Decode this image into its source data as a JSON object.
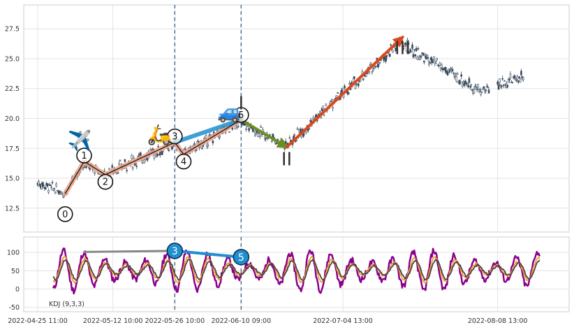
{
  "chart_data": [
    {
      "type": "candlestick",
      "panel": "price",
      "yticks": [
        "12.5",
        "15.0",
        "17.5",
        "20.0",
        "22.5",
        "25.0",
        "27.5"
      ],
      "ylim": [
        10.5,
        29.5
      ],
      "xlim_days": [
        0,
        117
      ],
      "grid": true,
      "vlines_days": [
        31,
        46
      ],
      "segments": [
        {
          "from": 0,
          "to": 1,
          "color": "#f2a98e",
          "width": 7
        },
        {
          "from": 1,
          "to": 2,
          "color": "#f2a98e",
          "width": 7
        },
        {
          "from": 2,
          "to": 3,
          "color": "#f2a98e",
          "width": 7
        },
        {
          "from": 3,
          "to": 4,
          "color": "#f2a98e",
          "width": 7
        },
        {
          "from": 4,
          "to": 5,
          "color": "#f2a98e",
          "width": 7
        },
        {
          "from": 3,
          "to": 5,
          "color": "#1f8fd0",
          "width": 6
        },
        {
          "from": 5,
          "to": 6,
          "color": "#6b8e23",
          "width": 4,
          "arrow": true
        },
        {
          "from": 6,
          "to": 7,
          "color": "#d94a1e",
          "width": 4,
          "arrow": true
        }
      ],
      "black_path": [
        0,
        1,
        2,
        3,
        4,
        5
      ],
      "pivots": [
        {
          "label": "0",
          "day": 6.2,
          "price": 13.7,
          "lx": 6.2,
          "ly": 12.0
        },
        {
          "label": "1",
          "day": 10.5,
          "price": 16.4,
          "lx": 10.5,
          "ly": 16.9
        },
        {
          "label": "2",
          "day": 15.3,
          "price": 15.3,
          "lx": 15.3,
          "ly": 14.7
        },
        {
          "label": "3",
          "day": 31.0,
          "price": 18.0,
          "lx": 31.0,
          "ly": 18.5
        },
        {
          "label": "4",
          "day": 33.0,
          "price": 17.0,
          "lx": 33.0,
          "ly": 16.4
        },
        {
          "label": "5",
          "day": 46.0,
          "price": 19.9,
          "lx": 46.0,
          "ly": 20.3
        },
        {
          "label": "II",
          "day": 56.3,
          "price": 17.6,
          "lx": 56.3,
          "ly": 16.6
        },
        {
          "label": "III",
          "day": 82.5,
          "price": 26.8,
          "lx": 82.5,
          "ly": 25.9
        }
      ],
      "roman_labels": [
        {
          "text": "I",
          "day": 46.0,
          "price": 21.3
        },
        {
          "text": "II",
          "day": 56.3,
          "price": 16.6
        },
        {
          "text": "III",
          "day": 82.5,
          "price": 25.9
        }
      ],
      "emojis": [
        {
          "name": "airplane-icon",
          "char": "✈️",
          "day": 9.5,
          "price": 17.6
        },
        {
          "name": "scooter-icon",
          "char": "🛵",
          "day": 27.5,
          "price": 18.1
        },
        {
          "name": "car-icon",
          "char": "🚙",
          "day": 43.4,
          "price": 20.0
        }
      ],
      "segments_series": [
        {
          "d0": 0,
          "d1": 6.2,
          "p0": 14.6,
          "p1": 13.8,
          "amp": 0.45
        },
        {
          "d0": 6.2,
          "d1": 10.5,
          "p0": 13.8,
          "p1": 16.2,
          "amp": 0.35
        },
        {
          "d0": 10.5,
          "d1": 15.3,
          "p0": 16.2,
          "p1": 15.3,
          "amp": 0.35
        },
        {
          "d0": 15.3,
          "d1": 31.0,
          "p0": 15.4,
          "p1": 17.9,
          "amp": 0.6
        },
        {
          "d0": 31.0,
          "d1": 33.0,
          "p0": 17.9,
          "p1": 17.0,
          "amp": 0.25
        },
        {
          "d0": 33.0,
          "d1": 46.0,
          "p0": 17.0,
          "p1": 19.8,
          "amp": 0.45
        },
        {
          "d0": 46.0,
          "d1": 56.3,
          "p0": 19.6,
          "p1": 17.8,
          "amp": 0.45
        },
        {
          "d0": 56.3,
          "d1": 82.5,
          "p0": 17.8,
          "p1": 26.6,
          "amp": 0.55
        },
        {
          "d0": 82.5,
          "d1": 100.0,
          "p0": 26.2,
          "p1": 22.3,
          "amp": 0.6
        },
        {
          "d0": 100.0,
          "d1": 110.0,
          "p0": 22.3,
          "p1": 23.6,
          "amp": 0.5
        }
      ]
    },
    {
      "type": "line",
      "panel": "indicator",
      "title": "KDJ (9,3,3)",
      "yticks": [
        "-50",
        "0",
        "50",
        "100"
      ],
      "ylim": [
        -62,
        142
      ],
      "xlim_days": [
        0,
        117
      ],
      "grid": true,
      "x_tick_labels": [
        "2022-04-25 11:00",
        "2022-05-12 10:00",
        "2022-05-26 10:00",
        "2022-06-10 09:00",
        "2022-07-04 13:00",
        "2022-08-08 13:00"
      ],
      "x_tick_days": [
        0,
        17,
        31,
        46,
        69,
        104
      ],
      "series": [
        {
          "color": "#8b008b",
          "width": 2.5,
          "amp": 55,
          "center": 50
        },
        {
          "color": "#f0a030",
          "width": 1.8,
          "amp": 35,
          "center": 52
        },
        {
          "color": "#444444",
          "width": 1.8,
          "amp": 28,
          "center": 52
        }
      ],
      "divergence_lines": [
        {
          "color": "#888888",
          "width": 3,
          "d0": 10.5,
          "v0": 101,
          "d1": 31.0,
          "v1": 104
        },
        {
          "color": "#1f8fd0",
          "width": 4,
          "d0": 31.0,
          "v0": 104,
          "d1": 46.0,
          "v1": 87
        }
      ],
      "pivots": [
        {
          "label": "3",
          "day": 31.0,
          "value": 104,
          "color": "#1f8fd0"
        },
        {
          "label": "5",
          "day": 46.0,
          "value": 87,
          "color": "#1f8fd0"
        }
      ]
    }
  ]
}
